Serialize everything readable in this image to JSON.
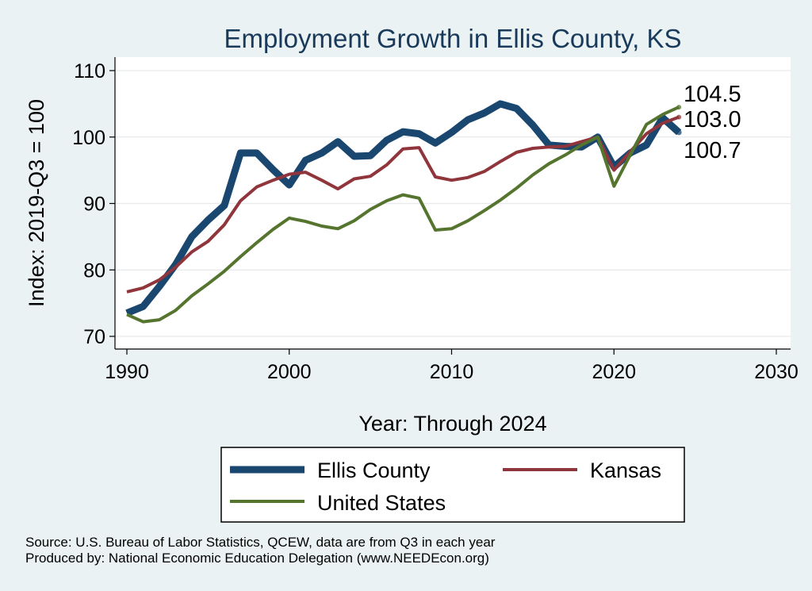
{
  "chart_data": {
    "type": "line",
    "title": "Employment Growth in Ellis County, KS",
    "xlabel": "Year: Through 2024",
    "ylabel": "Index: 2019-Q3 = 100",
    "xlim": [
      1990,
      2030
    ],
    "ylim": [
      70,
      110
    ],
    "xticks": [
      1990,
      2000,
      2010,
      2020,
      2030
    ],
    "yticks": [
      70,
      80,
      90,
      100,
      110
    ],
    "grid": true,
    "legend_position": "bottom",
    "x": [
      1990,
      1991,
      1992,
      1993,
      1994,
      1995,
      1996,
      1997,
      1998,
      1999,
      2000,
      2001,
      2002,
      2003,
      2004,
      2005,
      2006,
      2007,
      2008,
      2009,
      2010,
      2011,
      2012,
      2013,
      2014,
      2015,
      2016,
      2017,
      2018,
      2019,
      2020,
      2021,
      2022,
      2023,
      2024
    ],
    "series": [
      {
        "name": "Ellis  County",
        "color": "#1a476f",
        "values": [
          73.5,
          74.5,
          77.5,
          80.8,
          85.0,
          87.5,
          89.7,
          97.6,
          97.6,
          95.1,
          92.8,
          96.5,
          97.6,
          99.3,
          97.1,
          97.2,
          99.5,
          100.8,
          100.5,
          99.1,
          100.7,
          102.6,
          103.6,
          105.0,
          104.3,
          101.8,
          98.8,
          98.6,
          98.5,
          100.0,
          95.5,
          97.6,
          98.8,
          102.9,
          100.7
        ],
        "end_label": "100.7"
      },
      {
        "name": "Kansas",
        "color": "#90353b",
        "values": [
          76.7,
          77.3,
          78.5,
          80.4,
          82.7,
          84.3,
          86.8,
          90.4,
          92.5,
          93.5,
          94.4,
          94.7,
          93.5,
          92.2,
          93.7,
          94.1,
          95.8,
          98.2,
          98.4,
          94.0,
          93.5,
          93.9,
          94.8,
          96.3,
          97.7,
          98.3,
          98.5,
          98.6,
          99.3,
          100.0,
          95.0,
          97.8,
          100.5,
          102.1,
          103.0
        ],
        "end_label": "103.0"
      },
      {
        "name": "United States",
        "color": "#55752f",
        "values": [
          73.3,
          72.2,
          72.5,
          73.9,
          76.1,
          77.9,
          79.8,
          82.0,
          84.1,
          86.1,
          87.8,
          87.3,
          86.6,
          86.2,
          87.4,
          89.1,
          90.4,
          91.3,
          90.8,
          86.0,
          86.2,
          87.4,
          88.9,
          90.5,
          92.3,
          94.3,
          96.0,
          97.3,
          98.8,
          100.0,
          92.6,
          97.3,
          101.9,
          103.4,
          104.5
        ],
        "end_label": "104.5"
      }
    ],
    "source_lines": [
      "Source: U.S. Bureau of Labor Statistics, QCEW, data are from Q3 in each year",
      "Produced by: National Economic Education Delegation (www.NEEDEcon.org)"
    ]
  }
}
